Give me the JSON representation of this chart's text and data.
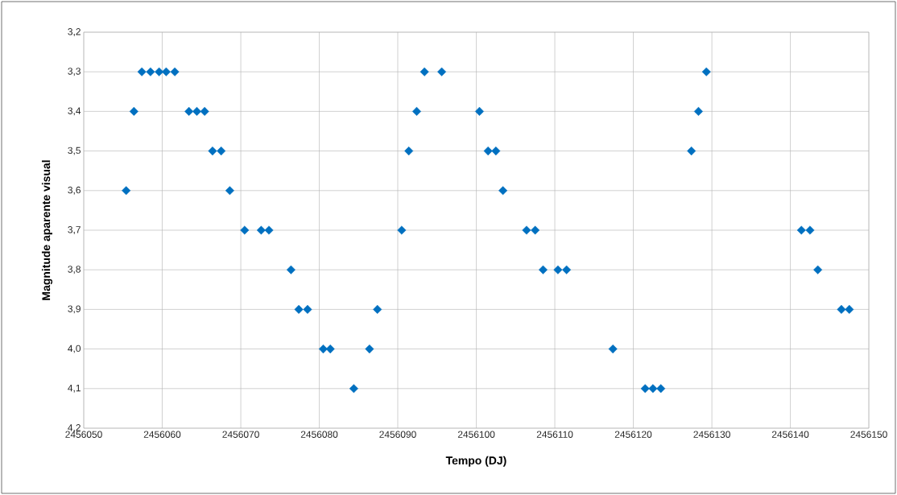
{
  "chart_data": {
    "type": "scatter",
    "xlabel": "Tempo (DJ)",
    "ylabel": "Magnitude aparente visual",
    "x": [
      2456055.4,
      2456056.4,
      2456057.4,
      2456058.5,
      2456059.6,
      2456060.5,
      2456061.6,
      2456063.4,
      2456064.4,
      2456065.4,
      2456066.4,
      2456067.5,
      2456068.6,
      2456070.5,
      2456072.6,
      2456073.6,
      2456076.4,
      2456077.4,
      2456078.5,
      2456080.5,
      2456081.4,
      2456084.4,
      2456086.4,
      2456087.4,
      2456090.5,
      2456091.4,
      2456092.4,
      2456093.4,
      2456095.6,
      2456100.4,
      2456101.5,
      2456102.5,
      2456103.4,
      2456106.4,
      2456107.5,
      2456108.5,
      2456110.4,
      2456111.5,
      2456117.4,
      2456121.5,
      2456122.5,
      2456123.5,
      2456127.4,
      2456128.3,
      2456129.3,
      2456141.4,
      2456142.5,
      2456143.5,
      2456146.5,
      2456147.5
    ],
    "values": [
      3.6,
      3.4,
      3.3,
      3.3,
      3.3,
      3.3,
      3.3,
      3.4,
      3.4,
      3.4,
      3.5,
      3.5,
      3.6,
      3.7,
      3.7,
      3.7,
      3.8,
      3.9,
      3.9,
      4.0,
      4.0,
      4.1,
      4.0,
      3.9,
      3.7,
      3.5,
      3.4,
      3.3,
      3.3,
      3.4,
      3.5,
      3.5,
      3.6,
      3.7,
      3.7,
      3.8,
      3.8,
      3.8,
      4.0,
      4.1,
      4.1,
      4.1,
      3.5,
      3.4,
      3.3,
      3.7,
      3.7,
      3.8,
      3.9,
      3.9
    ],
    "color": "#0070c0",
    "marker": "diamond",
    "grid": true,
    "xlim": [
      2456050,
      2456150
    ],
    "xticks": [
      2456050,
      2456060,
      2456070,
      2456080,
      2456090,
      2456100,
      2456110,
      2456120,
      2456130,
      2456140,
      2456150
    ],
    "ylim": [
      4.2,
      3.2
    ],
    "yticks": [
      {
        "value": 3.2,
        "label": "3,2"
      },
      {
        "value": 3.3,
        "label": "3,3"
      },
      {
        "value": 3.4,
        "label": "3,4"
      },
      {
        "value": 3.5,
        "label": "3,5"
      },
      {
        "value": 3.6,
        "label": "3,6"
      },
      {
        "value": 3.7,
        "label": "3,7"
      },
      {
        "value": 3.8,
        "label": "3,8"
      },
      {
        "value": 3.9,
        "label": "3,9"
      },
      {
        "value": 4.0,
        "label": "4,0"
      },
      {
        "value": 4.1,
        "label": "4,1"
      },
      {
        "value": 4.2,
        "label": "4,2"
      }
    ]
  }
}
